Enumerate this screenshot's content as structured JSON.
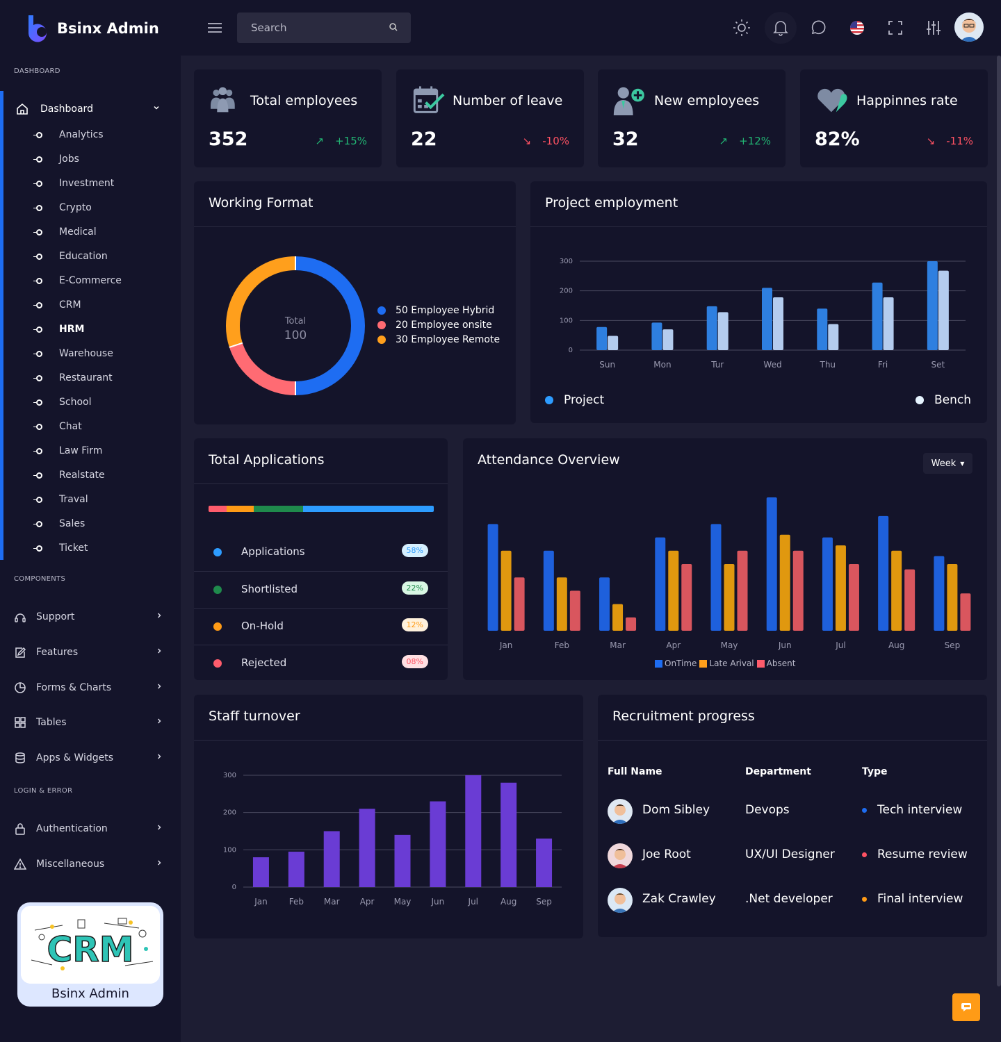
{
  "app": {
    "brand": "Bsinx Admin"
  },
  "sidebar": {
    "section_dashboard": "DASHBOARD",
    "dashboard_label": "Dashboard",
    "sub_items": [
      "Analytics",
      "Jobs",
      "Investment",
      "Crypto",
      "Medical",
      "Education",
      "E-Commerce",
      "CRM",
      "HRM",
      "Warehouse",
      "Restaurant",
      "School",
      "Chat",
      "Law Firm",
      "Realstate",
      "Traval",
      "Sales",
      "Ticket"
    ],
    "active_sub": "HRM",
    "section_components": "COMPONENTS",
    "components": [
      {
        "label": "Support",
        "icon": "headset-icon"
      },
      {
        "label": "Features",
        "icon": "edit-icon"
      },
      {
        "label": "Forms & Charts",
        "icon": "pie-chart-icon"
      },
      {
        "label": "Tables",
        "icon": "grid-icon"
      },
      {
        "label": "Apps & Widgets",
        "icon": "database-icon"
      }
    ],
    "section_login": "LOGIN & ERROR",
    "login_items": [
      {
        "label": "Authentication",
        "icon": "lock-icon"
      },
      {
        "label": "Miscellaneous",
        "icon": "warning-icon"
      }
    ],
    "promo": {
      "name": "Bsinx Admin",
      "image_text": "CRM"
    }
  },
  "topbar": {
    "search_placeholder": "Search",
    "icons": [
      "menu-icon",
      "search-icon",
      "sun-icon",
      "bell-icon",
      "chat-icon",
      "us-flag-icon",
      "fullscreen-icon",
      "sliders-icon"
    ]
  },
  "stats": [
    {
      "title": "Total employees",
      "value": "352",
      "change": "+15%",
      "trend": "up",
      "icon": "team-icon"
    },
    {
      "title": "Number of leave",
      "value": "22",
      "change": "-10%",
      "trend": "down",
      "icon": "calendar-check-icon"
    },
    {
      "title": "New employees",
      "value": "32",
      "change": "+12%",
      "trend": "up",
      "icon": "add-user-icon"
    },
    {
      "title": "Happinnes rate",
      "value": "82%",
      "change": "-11%",
      "trend": "down",
      "icon": "heart-icon"
    }
  ],
  "working_format": {
    "title": "Working Format",
    "center_label": "Total",
    "center_value": "100",
    "legend": [
      "50 Employee Hybrid",
      "20 Employee onsite",
      "30 Employee Remote"
    ]
  },
  "project_employment": {
    "title": "Project employment",
    "legend_project": "Project",
    "legend_bench": "Bench"
  },
  "total_applications": {
    "title": "Total Applications",
    "rows": [
      {
        "label": "Applications",
        "badge": "58%",
        "color": "#2d9cff"
      },
      {
        "label": "Shortlisted",
        "badge": "22%",
        "color": "#1f8a4c"
      },
      {
        "label": "On-Hold",
        "badge": "12%",
        "color": "#ff9b16"
      },
      {
        "label": "Rejected",
        "badge": "08%",
        "color": "#ff5c6c"
      }
    ]
  },
  "attendance": {
    "title": "Attendance Overview",
    "period_button": "Week",
    "legend": [
      "OnTime",
      "Late Arival",
      "Absent"
    ]
  },
  "staff_turnover": {
    "title": "Staff turnover"
  },
  "recruitment": {
    "title": "Recruitment progress",
    "headers": [
      "Full Name",
      "Department",
      "Type"
    ],
    "rows": [
      {
        "name": "Dom Sibley",
        "department": "Devops",
        "type": "Tech interview",
        "dot": "#1e6df2"
      },
      {
        "name": "Joe Root",
        "department": "UX/UI Designer",
        "type": "Resume review",
        "dot": "#ff5263"
      },
      {
        "name": "Zak Crawley",
        "department": ".Net developer",
        "type": "Final interview",
        "dot": "#ff9b16"
      }
    ]
  },
  "chart_data": [
    {
      "type": "pie",
      "title": "Working Format",
      "categories": [
        "Employee Hybrid",
        "Employee onsite",
        "Employee Remote"
      ],
      "values": [
        50,
        20,
        30
      ],
      "colors": [
        "#1e6df2",
        "#ff6b73",
        "#ff9f1c"
      ]
    },
    {
      "type": "bar",
      "title": "Project employment",
      "categories": [
        "Sun",
        "Mon",
        "Tur",
        "Wed",
        "Thu",
        "Fri",
        "Set"
      ],
      "series": [
        {
          "name": "Project",
          "values": [
            78,
            93,
            148,
            210,
            140,
            228,
            300
          ],
          "color": "#2e7fe0"
        },
        {
          "name": "Bench",
          "values": [
            48,
            70,
            128,
            178,
            88,
            178,
            268
          ],
          "color": "#b4ccee"
        }
      ],
      "ylim": [
        0,
        300
      ],
      "yticks": [
        0,
        100,
        200,
        300
      ]
    },
    {
      "type": "bar",
      "title": "Attendance Overview",
      "categories": [
        "Jan",
        "Feb",
        "Mar",
        "Apr",
        "May",
        "Jun",
        "Jul",
        "Aug",
        "Sep"
      ],
      "series": [
        {
          "name": "OnTime",
          "values": [
            80,
            60,
            40,
            70,
            80,
            100,
            70,
            86,
            56
          ],
          "color": "#1e60dc"
        },
        {
          "name": "Late Arival",
          "values": [
            60,
            40,
            20,
            60,
            50,
            72,
            64,
            60,
            50
          ],
          "color": "#e0980f"
        },
        {
          "name": "Absent",
          "values": [
            40,
            30,
            10,
            50,
            60,
            60,
            50,
            46,
            28
          ],
          "color": "#d9565e"
        }
      ],
      "ylim": [
        0,
        100
      ]
    },
    {
      "type": "bar",
      "title": "Staff turnover",
      "categories": [
        "Jan",
        "Feb",
        "Mar",
        "Apr",
        "May",
        "Jun",
        "Jul",
        "Aug",
        "Sep"
      ],
      "series": [
        {
          "values": [
            80,
            95,
            150,
            210,
            140,
            230,
            300,
            280,
            130
          ],
          "color": "#6a3cd4"
        }
      ],
      "ylim": [
        0,
        300
      ],
      "yticks": [
        0,
        100,
        200,
        300
      ]
    },
    {
      "type": "bar",
      "title": "Total Applications",
      "categories": [
        "Applications",
        "Shortlisted",
        "On-Hold",
        "Rejected"
      ],
      "values": [
        58,
        22,
        12,
        8
      ]
    }
  ]
}
